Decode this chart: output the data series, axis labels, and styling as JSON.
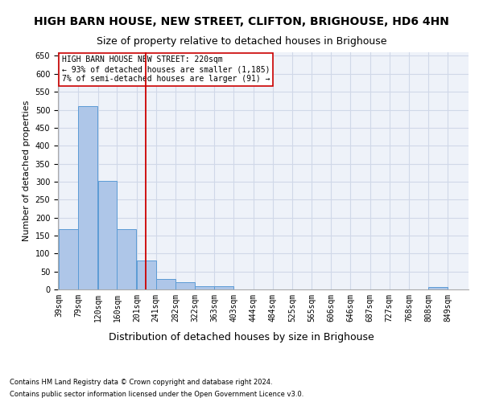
{
  "title": "HIGH BARN HOUSE, NEW STREET, CLIFTON, BRIGHOUSE, HD6 4HN",
  "subtitle": "Size of property relative to detached houses in Brighouse",
  "xlabel": "Distribution of detached houses by size in Brighouse",
  "ylabel": "Number of detached properties",
  "bar_color": "#aec6e8",
  "bar_edge_color": "#5b9bd5",
  "grid_color": "#d0d8e8",
  "background_color": "#eef2f9",
  "vline_x": 220,
  "vline_color": "#cc0000",
  "annotation_text": "HIGH BARN HOUSE NEW STREET: 220sqm\n← 93% of detached houses are smaller (1,185)\n7% of semi-detached houses are larger (91) →",
  "annotation_box_color": "#ffffff",
  "annotation_border_color": "#cc0000",
  "categories": [
    "39sqm",
    "79sqm",
    "120sqm",
    "160sqm",
    "201sqm",
    "241sqm",
    "282sqm",
    "322sqm",
    "363sqm",
    "403sqm",
    "444sqm",
    "484sqm",
    "525sqm",
    "565sqm",
    "606sqm",
    "646sqm",
    "687sqm",
    "727sqm",
    "768sqm",
    "808sqm",
    "849sqm"
  ],
  "bin_edges": [
    39,
    79,
    120,
    160,
    201,
    241,
    282,
    322,
    363,
    403,
    444,
    484,
    525,
    565,
    606,
    646,
    687,
    727,
    768,
    808,
    849
  ],
  "bin_width": 41,
  "values": [
    168,
    510,
    302,
    168,
    80,
    30,
    20,
    8,
    8,
    0,
    0,
    0,
    0,
    0,
    0,
    0,
    0,
    0,
    0,
    7,
    0
  ],
  "ylim": [
    0,
    660
  ],
  "yticks": [
    0,
    50,
    100,
    150,
    200,
    250,
    300,
    350,
    400,
    450,
    500,
    550,
    600,
    650
  ],
  "footnote1": "Contains HM Land Registry data © Crown copyright and database right 2024.",
  "footnote2": "Contains public sector information licensed under the Open Government Licence v3.0.",
  "title_fontsize": 10,
  "subtitle_fontsize": 9,
  "tick_fontsize": 7,
  "ylabel_fontsize": 8,
  "xlabel_fontsize": 9,
  "annotation_fontsize": 7,
  "footnote_fontsize": 6
}
